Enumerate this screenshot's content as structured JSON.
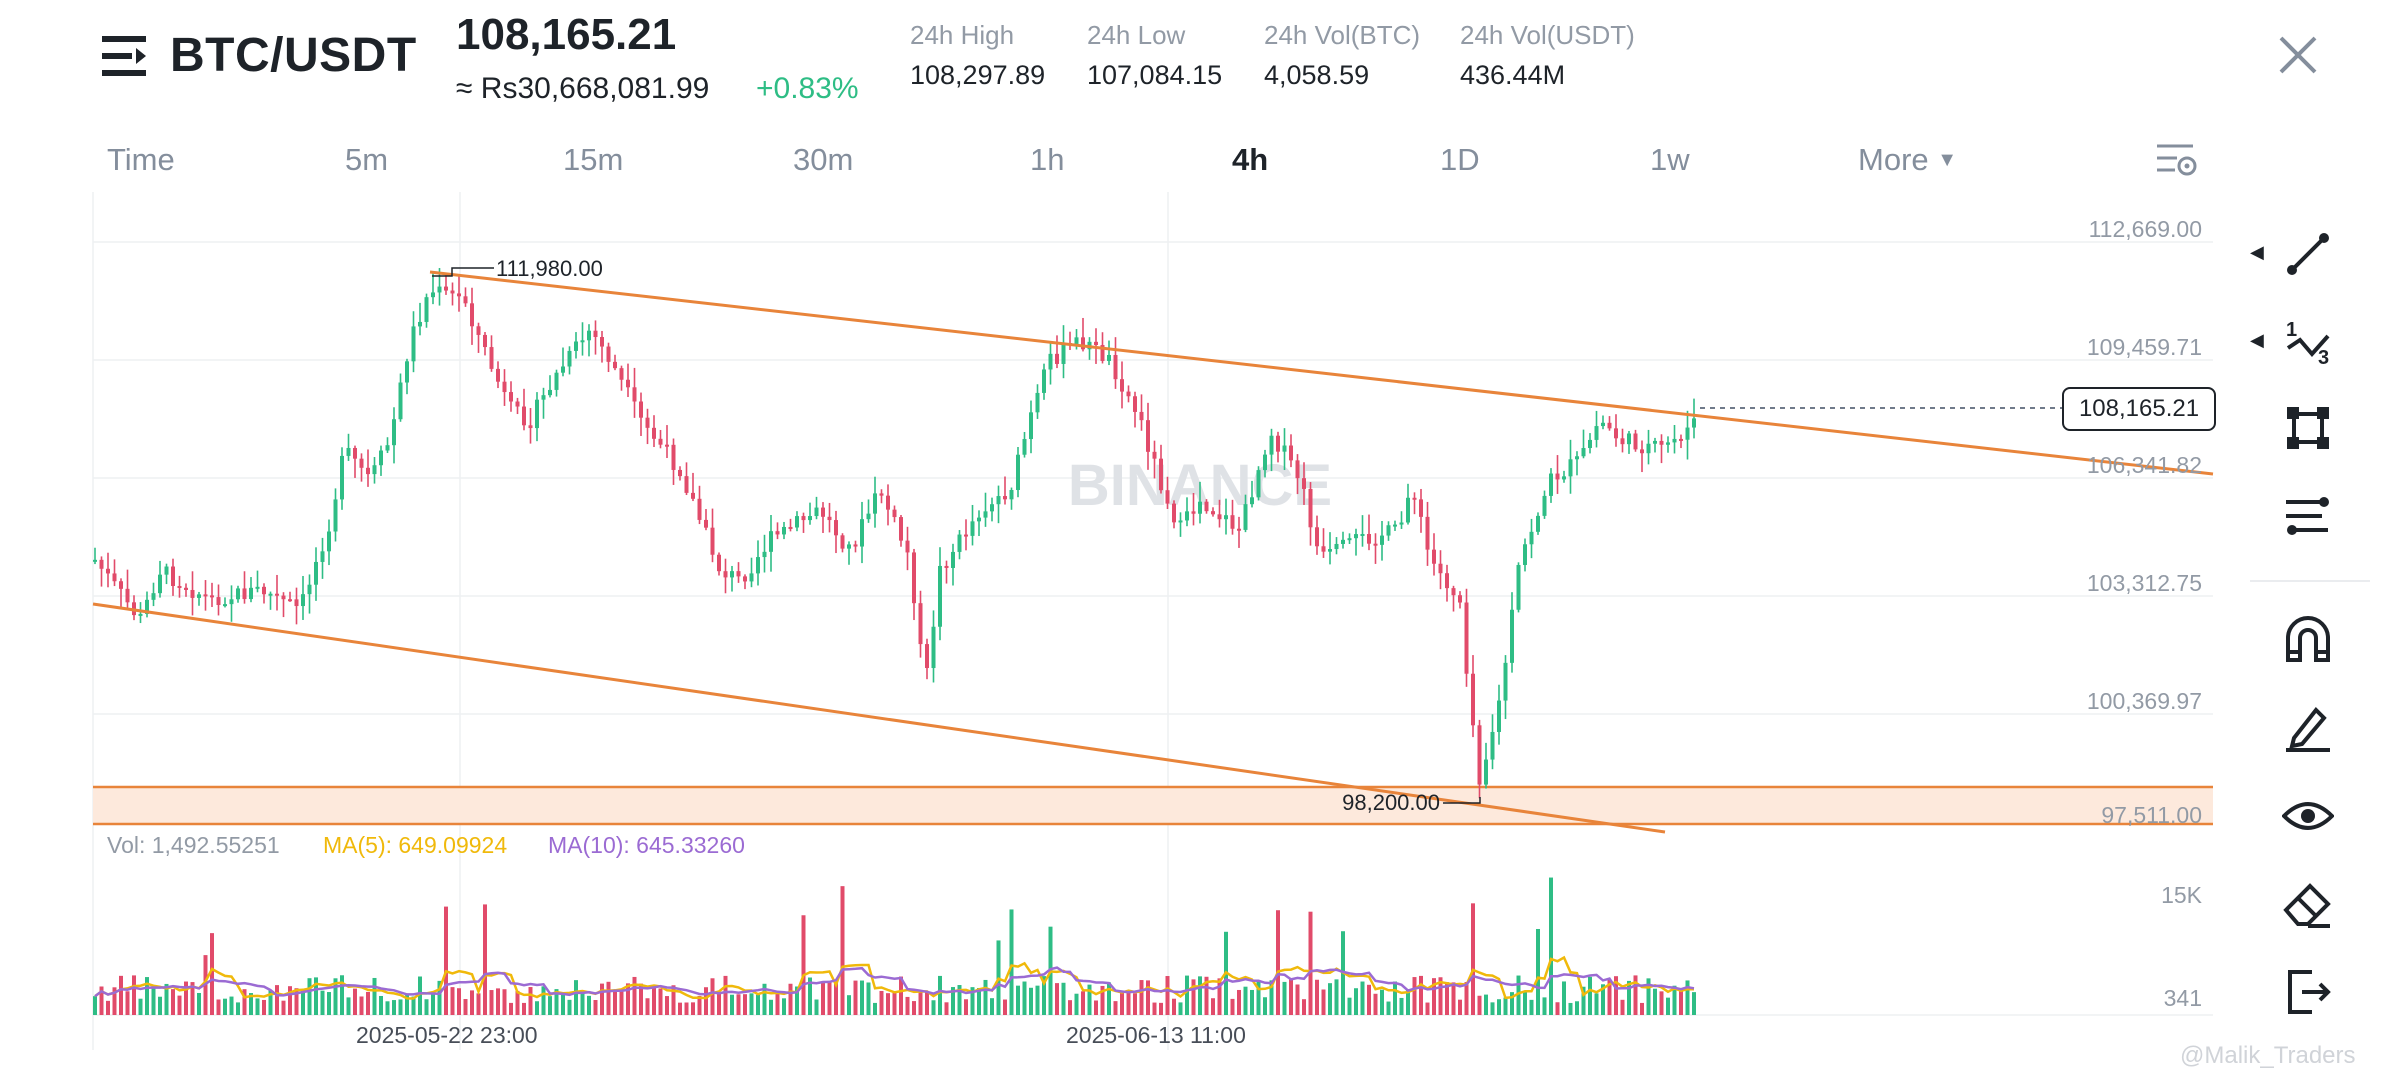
{
  "header": {
    "pair": "BTC/USDT",
    "last_price": "108,165.21",
    "converted_price": "≈ Rs30,668,081.99",
    "change_pct": "+0.83%",
    "stats": [
      {
        "label": "24h High",
        "value": "108,297.89"
      },
      {
        "label": "24h Low",
        "value": "107,084.15"
      },
      {
        "label": "24h Vol(BTC)",
        "value": "4,058.59"
      },
      {
        "label": "24h Vol(USDT)",
        "value": "436.44M"
      }
    ]
  },
  "intervals": [
    "Time",
    "5m",
    "15m",
    "30m",
    "1h",
    "4h",
    "1D",
    "1w",
    "More"
  ],
  "active_interval": "4h",
  "chart": {
    "price_axis": [
      "112,669.00",
      "109,459.71",
      "106,341.82",
      "103,312.75",
      "100,369.97",
      "97,511.00"
    ],
    "current_price_tag": "108,165.21",
    "high_marker": "111,980.00",
    "low_marker": "98,200.00",
    "watermark": "BINANCE",
    "volume": {
      "vol_label": "Vol: 1,492.55251",
      "ma5_label": "MA(5): 649.09924",
      "ma10_label": "MA(10): 645.33260",
      "axis": [
        "15K",
        "341"
      ]
    },
    "time_axis": [
      "2025-05-22 23:00",
      "2025-06-13 11:00"
    ]
  },
  "colors": {
    "up": "#2ebd85",
    "down": "#e14b6a",
    "trendline": "#e8843a",
    "ma5": "#f0b90b",
    "ma10": "#9b6bd3"
  },
  "toolbar_icons": [
    "line-tool-icon",
    "fibonacci-icon",
    "shape-tool-icon",
    "indicator-settings-icon",
    "magnet-icon",
    "pencil-icon",
    "eye-icon",
    "eraser-icon",
    "exit-icon"
  ],
  "credit": "@Malik_Traders"
}
